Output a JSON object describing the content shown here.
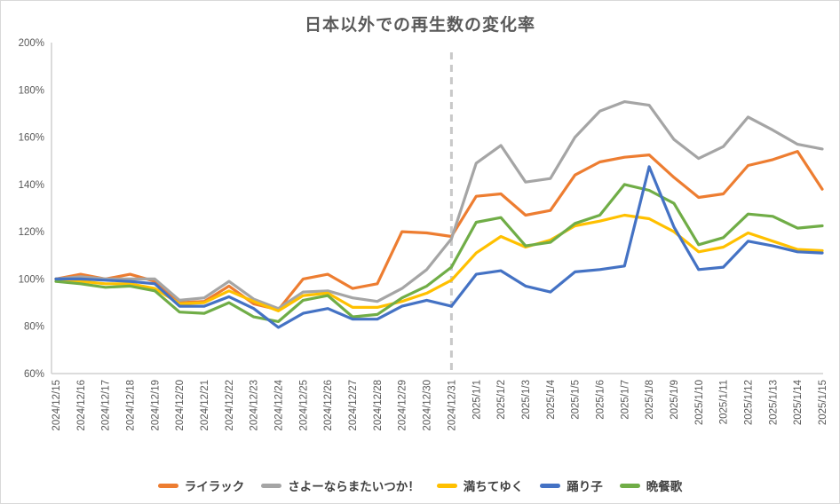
{
  "chart_data": {
    "type": "line",
    "title": "日本以外での再生数の変化率",
    "x_labels": [
      "2024/12/15",
      "2024/12/16",
      "2024/12/17",
      "2024/12/18",
      "2024/12/19",
      "2024/12/20",
      "2024/12/21",
      "2024/12/22",
      "2024/12/23",
      "2024/12/24",
      "2024/12/25",
      "2024/12/26",
      "2024/12/27",
      "2024/12/28",
      "2024/12/29",
      "2024/12/30",
      "2024/12/31",
      "2025/1/1",
      "2025/1/2",
      "2025/1/3",
      "2025/1/4",
      "2025/1/5",
      "2025/1/6",
      "2025/1/7",
      "2025/1/8",
      "2025/1/9",
      "2025/1/10",
      "2025/1/11",
      "2025/1/12",
      "2025/1/13",
      "2025/1/14",
      "2025/1/15"
    ],
    "series": [
      {
        "name": "ライラック",
        "color": "#ED7D31",
        "z": 1,
        "values": [
          100,
          102,
          100,
          102,
          99,
          90,
          90.5,
          97,
          89.5,
          87,
          100,
          102,
          96,
          98,
          120,
          119.5,
          118,
          135,
          136,
          127,
          129,
          144,
          149.5,
          151.5,
          152.5,
          143,
          134.5,
          136,
          148,
          150.5,
          154,
          138
        ]
      },
      {
        "name": "さよーならまたいつか！",
        "color": "#A5A5A5",
        "z": 2,
        "values": [
          100,
          101,
          100,
          100,
          100,
          91,
          92,
          99,
          91.5,
          87.5,
          94.5,
          95,
          92,
          90.5,
          96,
          104,
          117,
          149,
          156.5,
          141,
          142.5,
          160,
          171,
          175,
          173.5,
          159,
          151,
          156,
          168.5,
          163,
          157,
          155
        ]
      },
      {
        "name": "満ちてゆく",
        "color": "#FFC000",
        "z": 3,
        "values": [
          100,
          99,
          98,
          98,
          96,
          89.5,
          90,
          95,
          90.5,
          86.5,
          93,
          94,
          88,
          88,
          90.5,
          94,
          99.5,
          111,
          118,
          113.5,
          116.5,
          122.5,
          124.5,
          127,
          125.5,
          120,
          111.5,
          113.5,
          119.5,
          116,
          112.5,
          112
        ]
      },
      {
        "name": "踊り子",
        "color": "#4472C4",
        "z": 5,
        "values": [
          100,
          100,
          99.5,
          99,
          98,
          88.5,
          88.5,
          92.5,
          87.5,
          79.5,
          85.5,
          87.5,
          83,
          83,
          88.5,
          91,
          88.5,
          102,
          103.5,
          97,
          94.5,
          103,
          104,
          105.5,
          147.5,
          122,
          104,
          105,
          116,
          114,
          111.5,
          111
        ]
      },
      {
        "name": "晩餐歌",
        "color": "#70AD47",
        "z": 4,
        "values": [
          99,
          98,
          96.5,
          97,
          95,
          86,
          85.5,
          90,
          84,
          82,
          91,
          93,
          84,
          85,
          92,
          97,
          105,
          124,
          126,
          114,
          115.5,
          123.5,
          127,
          140,
          137.5,
          132,
          114.5,
          117.5,
          127.5,
          126.5,
          121.5,
          122.5
        ]
      }
    ],
    "ylim": [
      60,
      200
    ],
    "ytick_step": 20,
    "ytick_suffix": "%",
    "ytick_labels": [
      "200%",
      "180%",
      "160%",
      "140%",
      "120%",
      "100%",
      "80%",
      "60%"
    ],
    "grid": false,
    "legend_position": "bottom",
    "vline": {
      "at": "2024/12/31",
      "style": "dashed",
      "color": "#C9C9C9"
    },
    "colors": {
      "axis": "#C8C8C8",
      "tick_text": "#595959",
      "legend_text": "#404040"
    }
  }
}
